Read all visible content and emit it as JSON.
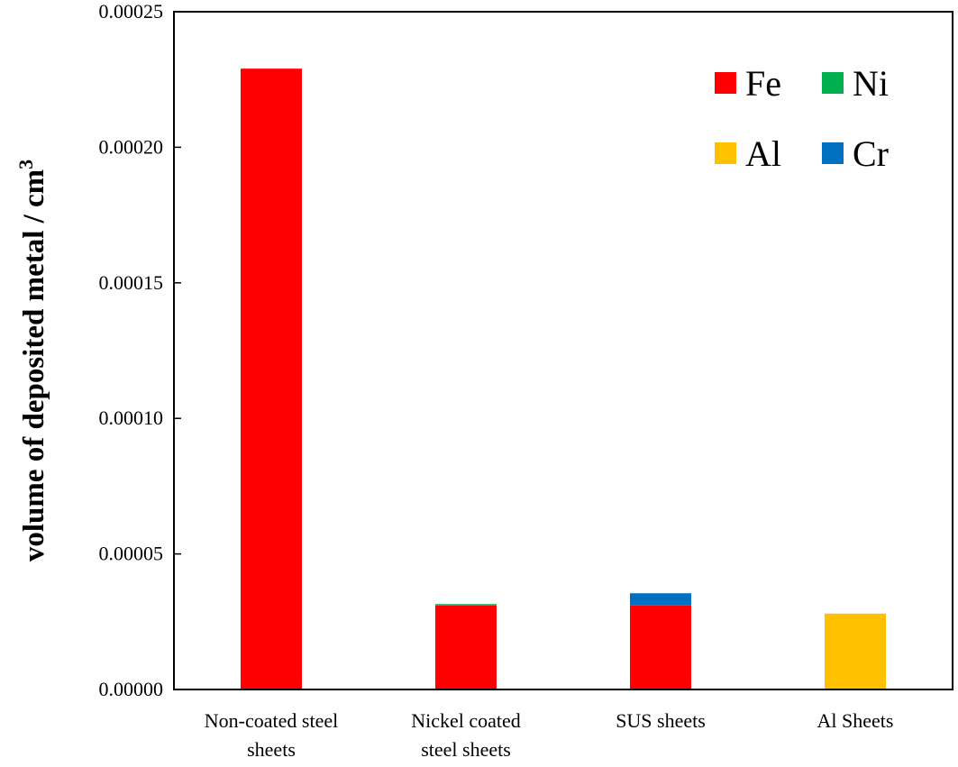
{
  "chart_data": {
    "type": "bar",
    "stacked": true,
    "categories": [
      [
        "Non-coated steel",
        "sheets"
      ],
      [
        "Nickel coated",
        "steel sheets"
      ],
      [
        "SUS sheets"
      ],
      [
        "Al Sheets"
      ]
    ],
    "series": [
      {
        "name": "Fe",
        "color": "#ff0000",
        "values": [
          0.000229,
          3.1e-05,
          3.1e-05,
          0
        ]
      },
      {
        "name": "Ni",
        "color": "#00b050",
        "values": [
          0,
          5e-07,
          0,
          0
        ]
      },
      {
        "name": "Al",
        "color": "#ffc000",
        "values": [
          0,
          0,
          0,
          2.8e-05
        ]
      },
      {
        "name": "Cr",
        "color": "#0070c0",
        "values": [
          0,
          0,
          4.5e-06,
          0
        ]
      }
    ],
    "ylabel": "volume of deposited metal / cm",
    "ylabel_superscript": "3",
    "ylim": [
      0,
      0.00025
    ],
    "yticks": [
      "0.00000",
      "0.00005",
      "0.00010",
      "0.00015",
      "0.00020",
      "0.00025"
    ],
    "ytick_values": [
      0,
      5e-05,
      0.0001,
      0.00015,
      0.0002,
      0.00025
    ],
    "grid": false,
    "legend_position": "top-right",
    "legend_layout": [
      [
        "Fe",
        "Ni"
      ],
      [
        "Al",
        "Cr"
      ]
    ]
  }
}
